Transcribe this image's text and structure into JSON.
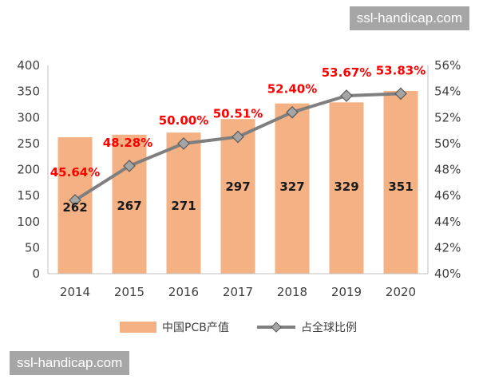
{
  "chart_data": {
    "type": "bar",
    "categories": [
      "2014",
      "2015",
      "2016",
      "2017",
      "2018",
      "2019",
      "2020"
    ],
    "series": [
      {
        "name": "中国PCB产值",
        "type": "bar",
        "axis": "left",
        "values": [
          262,
          267,
          271,
          297,
          327,
          329,
          351
        ],
        "color": "#f4b183"
      },
      {
        "name": "占全球比例",
        "type": "line",
        "axis": "right",
        "values": [
          45.64,
          48.28,
          50.0,
          50.51,
          52.4,
          53.67,
          53.83
        ],
        "color": "#7f7f7f",
        "marker_color": "#a5a5a5"
      }
    ],
    "bar_labels": [
      "262",
      "267",
      "271",
      "297",
      "327",
      "329",
      "351"
    ],
    "line_labels": [
      "45.64%",
      "48.28%",
      "50.00%",
      "50.51%",
      "52.40%",
      "53.67%",
      "53.83%"
    ],
    "line_label_color": "#ff0000",
    "ylim_left": [
      0,
      400
    ],
    "ylim_right": [
      40,
      56
    ],
    "left_ticks": [
      "0",
      "50",
      "100",
      "150",
      "200",
      "250",
      "300",
      "350",
      "400"
    ],
    "right_ticks": [
      "40%",
      "42%",
      "44%",
      "46%",
      "48%",
      "50%",
      "52%",
      "54%",
      "56%"
    ],
    "legend_position": "bottom",
    "grid": false
  },
  "watermarks": {
    "top": "ssl-handicap.com",
    "bottom": "ssl-handicap.com"
  }
}
